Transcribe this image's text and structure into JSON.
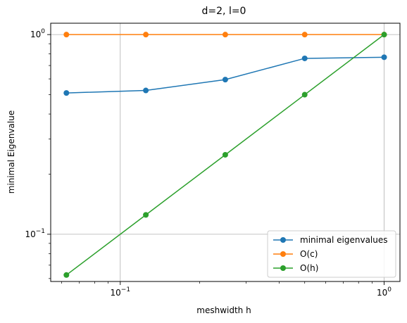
{
  "chart_data": {
    "type": "line",
    "title": "d=2, l=0",
    "xlabel": "meshwidth h",
    "ylabel": "minimal Eigenvalue",
    "xscale": "log",
    "yscale": "log",
    "xlim": [
      0.0545,
      1.148
    ],
    "ylim": [
      0.058,
      1.14
    ],
    "grid": true,
    "legend_position": "lower-right",
    "x": [
      0.0625,
      0.125,
      0.25,
      0.5,
      1.0
    ],
    "x_ticks": [
      {
        "value": 0.1,
        "base": "10",
        "exp": "−1"
      },
      {
        "value": 1.0,
        "base": "10",
        "exp": "0"
      }
    ],
    "y_ticks": [
      {
        "value": 0.1,
        "base": "10",
        "exp": "−1"
      },
      {
        "value": 1.0,
        "base": "10",
        "exp": "0"
      }
    ],
    "series": [
      {
        "name": "minimal eigenvalues",
        "color": "#1f77b4",
        "values": [
          0.51,
          0.525,
          0.595,
          0.76,
          0.77
        ]
      },
      {
        "name": "O(c)",
        "color": "#ff7f0e",
        "values": [
          1.0,
          1.0,
          1.0,
          1.0,
          1.0
        ]
      },
      {
        "name": "O(h)",
        "color": "#2ca02c",
        "values": [
          0.0625,
          0.125,
          0.25,
          0.5,
          1.0
        ]
      }
    ]
  }
}
